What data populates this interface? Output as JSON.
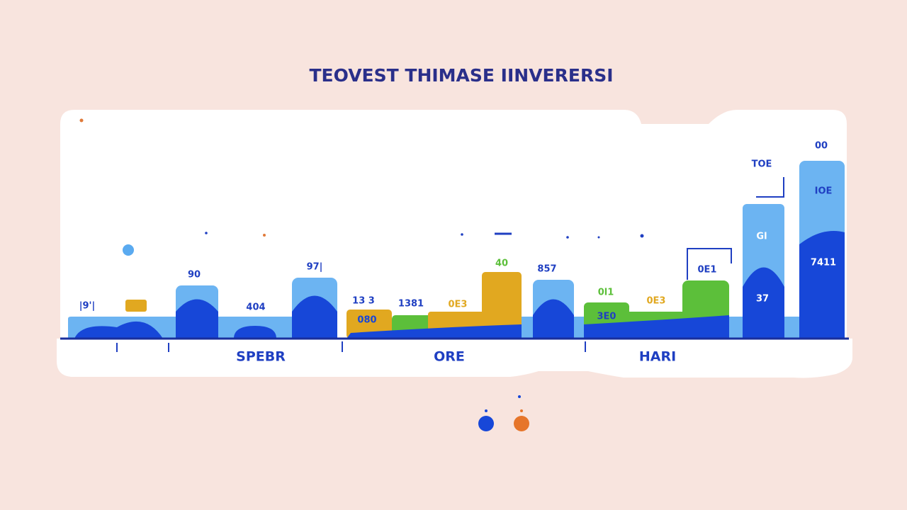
{
  "title": "TEOVEST THIMASE IINVERERSI",
  "labels": [
    "|9'|",
    "90",
    "404",
    "97|",
    "13 3",
    "1381",
    "0E3",
    "40",
    "857",
    "0l1",
    "0E3",
    "3E0",
    "0E1",
    "TOE",
    "00",
    "IOE",
    "Gl",
    "7411",
    "37",
    "080"
  ],
  "groups": [
    "SPEBR",
    "ORE",
    "HARI"
  ]
}
